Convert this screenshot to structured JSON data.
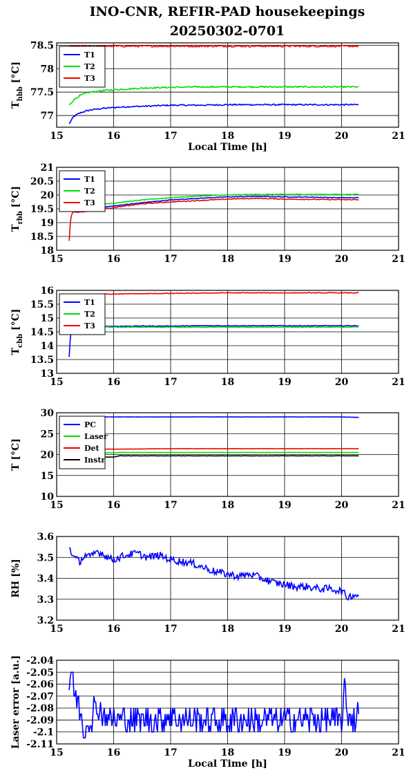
{
  "header": {
    "title_line1": "INO-CNR, REFIR-PAD housekeepings",
    "title_line2": "20250302-0701"
  },
  "colors": {
    "blue": "#0000ff",
    "green": "#00dd00",
    "red": "#ee0000",
    "black": "#000000"
  },
  "chart_data": [
    {
      "type": "line",
      "ylabel": "T",
      "ylabel_sub": "hbb",
      "ylabel_unit": "[°C]",
      "xlabel": "Local Time [h]",
      "xlim": [
        15,
        21
      ],
      "ylim": [
        76.75,
        78.55
      ],
      "yticks": [
        77,
        77.5,
        78,
        78.5
      ],
      "ytick_labels": [
        "77",
        "77.5",
        "78",
        "78.5"
      ],
      "grid": true,
      "legend": "top-left",
      "x": [
        15.22,
        15.3,
        15.4,
        15.5,
        15.6,
        15.8,
        16.0,
        16.3,
        16.6,
        17.0,
        17.5,
        18.0,
        18.5,
        19.0,
        19.5,
        20.0,
        20.3
      ],
      "series": [
        {
          "name": "T1",
          "color": "blue",
          "noise": 0.015,
          "values": [
            76.82,
            76.98,
            77.05,
            77.09,
            77.12,
            77.15,
            77.17,
            77.19,
            77.2,
            77.22,
            77.22,
            77.23,
            77.23,
            77.23,
            77.23,
            77.23,
            77.23
          ]
        },
        {
          "name": "T2",
          "color": "green",
          "noise": 0.015,
          "values": [
            77.22,
            77.33,
            77.42,
            77.47,
            77.5,
            77.53,
            77.55,
            77.57,
            77.59,
            77.6,
            77.61,
            77.61,
            77.61,
            77.61,
            77.61,
            77.61,
            77.61
          ]
        },
        {
          "name": "T3",
          "color": "red",
          "noise": 0.018,
          "values": [
            78.48,
            78.48,
            78.48,
            78.48,
            78.48,
            78.48,
            78.48,
            78.48,
            78.48,
            78.48,
            78.48,
            78.48,
            78.48,
            78.48,
            78.48,
            78.48,
            78.48
          ]
        }
      ]
    },
    {
      "type": "line",
      "ylabel": "T",
      "ylabel_sub": "rbb",
      "ylabel_unit": "[°C]",
      "xlabel": "",
      "xlim": [
        15,
        21
      ],
      "ylim": [
        18,
        21
      ],
      "yticks": [
        18,
        18.5,
        19,
        19.5,
        20,
        20.5,
        21
      ],
      "ytick_labels": [
        "18",
        "18.5",
        "19",
        "19.5",
        "20",
        "20.5",
        "21"
      ],
      "grid": true,
      "legend": "top-left",
      "x": [
        15.22,
        15.24,
        15.26,
        15.3,
        15.4,
        15.5,
        15.7,
        15.9,
        16.2,
        16.5,
        17.0,
        17.5,
        18.0,
        18.5,
        19.0,
        19.5,
        20.0,
        20.3
      ],
      "series": [
        {
          "name": "T1",
          "color": "blue",
          "noise": 0.012,
          "values": [
            19.45,
            19.45,
            19.45,
            19.45,
            19.47,
            19.48,
            19.52,
            19.58,
            19.65,
            19.72,
            19.82,
            19.88,
            19.93,
            19.95,
            19.93,
            19.92,
            19.9,
            19.9
          ]
        },
        {
          "name": "T2",
          "color": "green",
          "noise": 0.012,
          "values": [
            19.5,
            19.5,
            19.5,
            19.52,
            19.55,
            19.58,
            19.62,
            19.68,
            19.75,
            19.82,
            19.9,
            19.96,
            20.0,
            20.02,
            20.02,
            20.02,
            20.02,
            20.02
          ]
        },
        {
          "name": "T3",
          "color": "red",
          "noise": 0.015,
          "values": [
            18.35,
            19.0,
            19.3,
            19.4,
            19.38,
            19.4,
            19.45,
            19.52,
            19.6,
            19.68,
            19.75,
            19.8,
            19.85,
            19.88,
            19.85,
            19.84,
            19.83,
            19.83
          ]
        }
      ]
    },
    {
      "type": "line",
      "ylabel": "T",
      "ylabel_sub": "cbb",
      "ylabel_unit": "[°C]",
      "xlabel": "",
      "xlim": [
        15,
        21
      ],
      "ylim": [
        13,
        16
      ],
      "yticks": [
        13,
        13.5,
        14,
        14.5,
        15,
        15.5,
        16
      ],
      "ytick_labels": [
        "13",
        "13.5",
        "14",
        "14.5",
        "15",
        "15.5",
        "16"
      ],
      "grid": true,
      "legend": "top-left",
      "x": [
        15.22,
        15.24,
        15.26,
        15.3,
        15.5,
        16.0,
        16.5,
        17.0,
        17.5,
        18.0,
        18.5,
        19.0,
        19.5,
        20.0,
        20.3
      ],
      "series": [
        {
          "name": "T1",
          "color": "blue",
          "noise": 0.012,
          "values": [
            13.6,
            14.3,
            14.6,
            14.7,
            14.7,
            14.7,
            14.71,
            14.71,
            14.72,
            14.72,
            14.72,
            14.72,
            14.72,
            14.72,
            14.72
          ]
        },
        {
          "name": "T2",
          "color": "green",
          "noise": 0.012,
          "values": [
            14.7,
            14.68,
            14.66,
            14.67,
            14.67,
            14.67,
            14.67,
            14.67,
            14.67,
            14.67,
            14.67,
            14.67,
            14.67,
            14.67,
            14.67
          ]
        },
        {
          "name": "T3",
          "color": "red",
          "noise": 0.012,
          "values": [
            15.86,
            15.86,
            15.86,
            15.86,
            15.86,
            15.87,
            15.88,
            15.89,
            15.9,
            15.91,
            15.91,
            15.91,
            15.91,
            15.91,
            15.91
          ]
        }
      ]
    },
    {
      "type": "line",
      "ylabel": "T [°C]",
      "ylabel_sub": "",
      "ylabel_unit": "",
      "xlabel": "",
      "xlim": [
        15,
        21
      ],
      "ylim": [
        10,
        30
      ],
      "yticks": [
        10,
        15,
        20,
        25,
        30
      ],
      "ytick_labels": [
        "10",
        "15",
        "20",
        "25",
        "30"
      ],
      "grid": true,
      "legend": "top-left",
      "x": [
        15.22,
        16.0,
        16.1,
        17.0,
        18.0,
        19.0,
        20.0,
        20.3
      ],
      "series": [
        {
          "name": "PC",
          "color": "blue",
          "noise": 0.03,
          "values": [
            29.0,
            29.0,
            29.0,
            29.0,
            29.0,
            29.0,
            29.0,
            28.9
          ]
        },
        {
          "name": "Laser",
          "color": "green",
          "noise": 0.02,
          "values": [
            20.4,
            20.4,
            20.5,
            20.5,
            20.5,
            20.5,
            20.5,
            20.5
          ]
        },
        {
          "name": "Det",
          "color": "red",
          "noise": 0.02,
          "values": [
            21.3,
            21.3,
            21.3,
            21.4,
            21.4,
            21.4,
            21.4,
            21.4
          ]
        },
        {
          "name": "Instr",
          "color": "black",
          "noise": 0.03,
          "values": [
            19.4,
            19.4,
            19.7,
            19.7,
            19.7,
            19.7,
            19.7,
            19.7
          ]
        }
      ]
    },
    {
      "type": "line",
      "ylabel": "RH [%]",
      "ylabel_sub": "",
      "ylabel_unit": "",
      "xlabel": "",
      "xlim": [
        15,
        21
      ],
      "ylim": [
        3.2,
        3.6
      ],
      "yticks": [
        3.2,
        3.3,
        3.4,
        3.5,
        3.6
      ],
      "ytick_labels": [
        "3.2",
        "3.3",
        "3.4",
        "3.5",
        "3.6"
      ],
      "grid": true,
      "legend": "none",
      "x": [
        15.22,
        15.3,
        15.4,
        15.5,
        15.6,
        15.7,
        15.8,
        15.9,
        16.0,
        16.2,
        16.4,
        16.6,
        16.8,
        17.0,
        17.2,
        17.4,
        17.6,
        17.8,
        18.0,
        18.2,
        18.4,
        18.6,
        18.8,
        19.0,
        19.2,
        19.4,
        19.6,
        19.8,
        20.0,
        20.1,
        20.2,
        20.3
      ],
      "series": [
        {
          "name": "",
          "color": "blue",
          "noise": 0.018,
          "values": [
            3.55,
            3.5,
            3.48,
            3.51,
            3.5,
            3.53,
            3.52,
            3.5,
            3.49,
            3.51,
            3.52,
            3.5,
            3.51,
            3.49,
            3.48,
            3.47,
            3.45,
            3.43,
            3.42,
            3.41,
            3.42,
            3.4,
            3.38,
            3.37,
            3.36,
            3.36,
            3.35,
            3.35,
            3.34,
            3.31,
            3.32,
            3.32
          ]
        }
      ]
    },
    {
      "type": "line",
      "ylabel": "Laser error [a.u.]",
      "ylabel_sub": "",
      "ylabel_unit": "",
      "xlabel": "Local Time [h]",
      "xlim": [
        15,
        21
      ],
      "ylim": [
        -2.11,
        -2.04
      ],
      "yticks": [
        -2.11,
        -2.1,
        -2.09,
        -2.08,
        -2.07,
        -2.06,
        -2.05,
        -2.04
      ],
      "ytick_labels": [
        "-2.11",
        "-2.1",
        "-2.09",
        "-2.08",
        "-2.07",
        "-2.06",
        "-2.05",
        "-2.04"
      ],
      "grid": true,
      "legend": "none",
      "step": 0.005,
      "x": [
        15.22,
        15.25,
        15.27,
        15.3,
        15.35,
        15.4,
        15.45,
        15.5,
        15.55,
        15.6,
        15.65,
        15.7,
        15.75,
        15.8,
        16.0,
        16.2,
        16.4,
        16.6,
        16.8,
        17.0,
        17.2,
        17.4,
        17.6,
        17.8,
        18.0,
        18.2,
        18.4,
        18.6,
        18.8,
        19.0,
        19.2,
        19.4,
        19.6,
        19.8,
        20.0,
        20.05,
        20.1,
        20.2,
        20.3
      ],
      "series": [
        {
          "name": "",
          "color": "blue",
          "noise": 0.0,
          "values": [
            -2.06,
            -2.05,
            -2.055,
            -2.065,
            -2.07,
            -2.08,
            -2.09,
            -2.1,
            -2.085,
            -2.09,
            -2.08,
            -2.085,
            -2.075,
            -2.085,
            -2.09,
            -2.09,
            -2.09,
            -2.09,
            -2.09,
            -2.085,
            -2.09,
            -2.09,
            -2.09,
            -2.09,
            -2.09,
            -2.09,
            -2.09,
            -2.09,
            -2.09,
            -2.09,
            -2.09,
            -2.09,
            -2.09,
            -2.09,
            -2.09,
            -2.065,
            -2.085,
            -2.09,
            -2.085
          ]
        }
      ]
    }
  ]
}
